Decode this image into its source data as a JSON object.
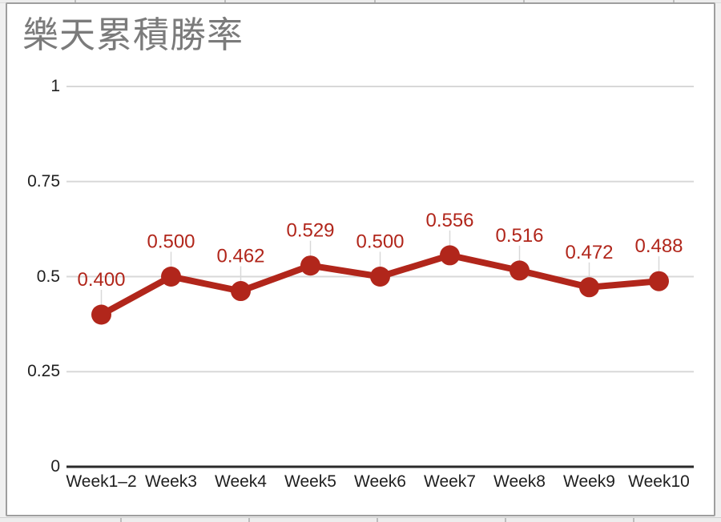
{
  "chart_data": {
    "type": "line",
    "title": "樂天累積勝率",
    "categories": [
      "Week1–2",
      "Week3",
      "Week4",
      "Week5",
      "Week6",
      "Week7",
      "Week8",
      "Week9",
      "Week10"
    ],
    "series": [
      {
        "name": "樂天累積勝率",
        "values": [
          0.4,
          0.5,
          0.462,
          0.529,
          0.5,
          0.556,
          0.516,
          0.472,
          0.488
        ]
      }
    ],
    "point_labels": [
      "0.400",
      "0.500",
      "0.462",
      "0.529",
      "0.500",
      "0.556",
      "0.516",
      "0.472",
      "0.488"
    ],
    "y_ticks": [
      {
        "label": "1",
        "value": 1
      },
      {
        "label": "0.75",
        "value": 0.75
      },
      {
        "label": "0.5",
        "value": 0.5
      },
      {
        "label": "0.25",
        "value": 0.25
      },
      {
        "label": "0",
        "value": 0
      }
    ],
    "ylim": [
      0,
      1
    ],
    "grid": true,
    "legend_position": "none",
    "colors": {
      "line": "#b1261b",
      "point": "#b1261b",
      "data_label": "#b1261b",
      "title": "#7b7b7b",
      "grid_line": "#d8d8d8",
      "axis_line": "#2a2a2a",
      "tick_text": "#1f1f1f",
      "leader_line": "#d8d8d8"
    }
  }
}
